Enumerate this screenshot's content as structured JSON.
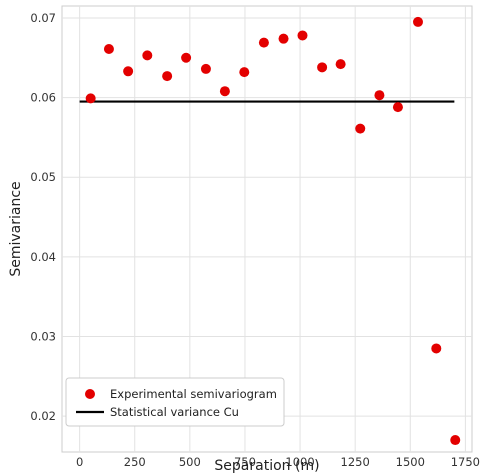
{
  "chart_data": {
    "type": "scatter",
    "xlabel": "Separation (m)",
    "ylabel": "Semivariance",
    "xlim": [
      -80,
      1780
    ],
    "ylim": [
      0.0155,
      0.0715
    ],
    "xticks": [
      0,
      250,
      500,
      750,
      1000,
      1250,
      1500,
      1750
    ],
    "yticks": [
      0.02,
      0.03,
      0.04,
      0.05,
      0.06,
      0.07
    ],
    "grid": true,
    "legend_position": "lower-left",
    "series": [
      {
        "name": "Experimental semivariogram",
        "kind": "scatter",
        "color": "#e30000",
        "x": [
          50,
          133,
          220,
          307,
          397,
          483,
          573,
          659,
          747,
          836,
          925,
          1011,
          1100,
          1184,
          1273,
          1360,
          1444,
          1535,
          1618,
          1704
        ],
        "y": [
          0.0599,
          0.0661,
          0.0633,
          0.0653,
          0.0627,
          0.065,
          0.0636,
          0.0608,
          0.0632,
          0.0669,
          0.0674,
          0.0678,
          0.0638,
          0.0642,
          0.0561,
          0.0603,
          0.0588,
          0.0695,
          0.0285,
          0.017
        ]
      },
      {
        "name": "Statistical variance Cu",
        "kind": "line",
        "color": "#000000",
        "x": [
          0,
          1700
        ],
        "y": [
          0.0595,
          0.0595
        ]
      }
    ]
  }
}
